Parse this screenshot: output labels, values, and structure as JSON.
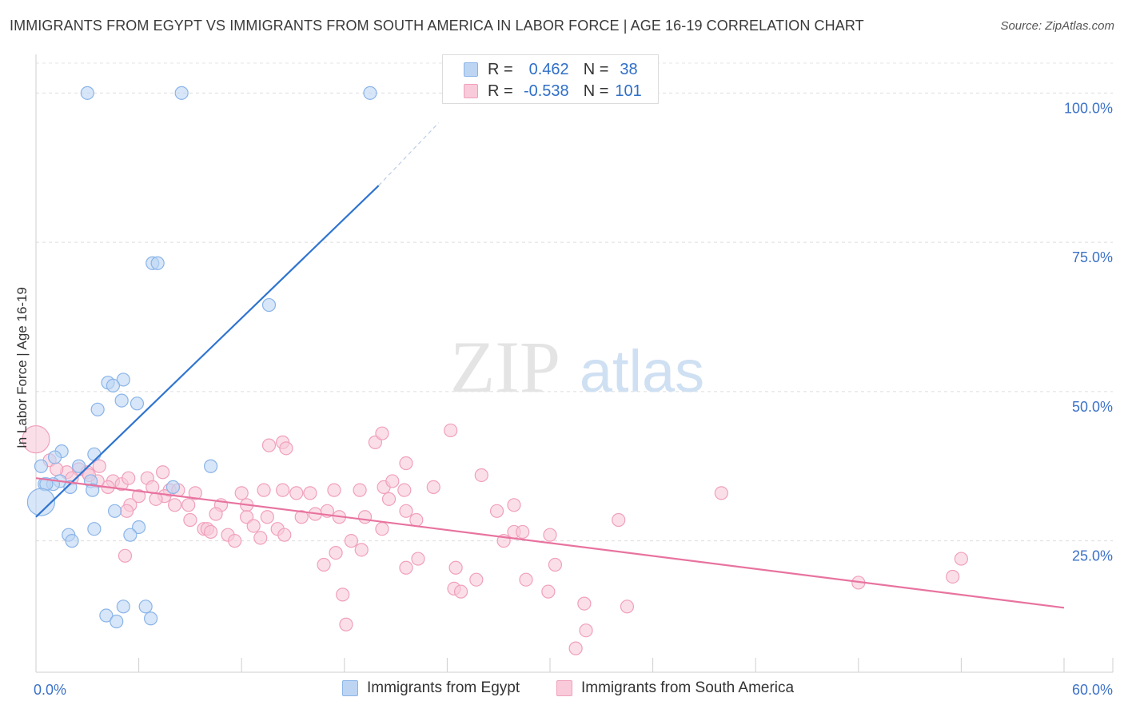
{
  "title": "IMMIGRANTS FROM EGYPT VS IMMIGRANTS FROM SOUTH AMERICA IN LABOR FORCE | AGE 16-19 CORRELATION CHART",
  "source": "Source: ZipAtlas.com",
  "watermark": {
    "zip": "ZIP",
    "atlas": "atlas"
  },
  "legend_stats": [
    {
      "r_label": "R =",
      "r_value": "0.462",
      "n_label": "N =",
      "n_value": "38",
      "color": "#8ab4e8",
      "fill": "#bdd5f3"
    },
    {
      "r_label": "R =",
      "r_value": "-0.538",
      "n_label": "N =",
      "n_value": "101",
      "color": "#f0a0bc",
      "fill": "#f9cad9"
    }
  ],
  "bottom_legend": [
    {
      "label": "Immigrants from Egypt",
      "color": "#8ab4e8",
      "fill": "#bdd5f3"
    },
    {
      "label": "Immigrants from South America",
      "color": "#f0a0bc",
      "fill": "#f9cad9"
    }
  ],
  "chart_data": {
    "type": "scatter",
    "title": "IMMIGRANTS FROM EGYPT VS IMMIGRANTS FROM SOUTH AMERICA IN LABOR FORCE | AGE 16-19 CORRELATION CHART",
    "xlabel": "",
    "ylabel": "In Labor Force | Age 16-19",
    "xlim": [
      0,
      60
    ],
    "ylim": [
      3,
      105
    ],
    "x_tick_labels": {
      "left": "0.0%",
      "right": "60.0%"
    },
    "y_ticks": [
      {
        "value": 25,
        "label": "25.0%"
      },
      {
        "value": 50,
        "label": "50.0%"
      },
      {
        "value": 75,
        "label": "75.0%"
      },
      {
        "value": 100,
        "label": "100.0%"
      }
    ],
    "grid": true,
    "series": [
      {
        "name": "Immigrants from Egypt",
        "color": "#8ab4e8",
        "fill": "#bdd5f3",
        "line_color": "#2f74d0",
        "trendline": {
          "x_start": 0.0,
          "y_start": 29.0,
          "x_end": 20.0,
          "y_end": 84.5,
          "dash_x_end": 23.5,
          "dash_y_end": 95.0
        },
        "points": [
          [
            3.0,
            100.0
          ],
          [
            8.5,
            100.0
          ],
          [
            19.5,
            100.0
          ],
          [
            6.8,
            71.5
          ],
          [
            7.1,
            71.5
          ],
          [
            13.6,
            64.5
          ],
          [
            5.1,
            52.0
          ],
          [
            4.2,
            51.5
          ],
          [
            4.5,
            51.0
          ],
          [
            5.0,
            48.5
          ],
          [
            5.9,
            48.0
          ],
          [
            3.6,
            47.0
          ],
          [
            1.5,
            40.0
          ],
          [
            3.4,
            39.5
          ],
          [
            1.1,
            39.0
          ],
          [
            0.3,
            37.5
          ],
          [
            2.5,
            37.5
          ],
          [
            10.2,
            37.5
          ],
          [
            1.4,
            35.0
          ],
          [
            3.2,
            35.0
          ],
          [
            0.5,
            34.5
          ],
          [
            2.0,
            34.0
          ],
          [
            1.0,
            34.5
          ],
          [
            0.6,
            34.5
          ],
          [
            8.0,
            34.0
          ],
          [
            3.3,
            33.5
          ],
          [
            0.3,
            31.5
          ],
          [
            4.6,
            30.0
          ],
          [
            3.4,
            27.0
          ],
          [
            6.0,
            27.3
          ],
          [
            1.9,
            26.0
          ],
          [
            2.1,
            25.0
          ],
          [
            5.5,
            26.0
          ],
          [
            4.1,
            12.5
          ],
          [
            5.1,
            14.0
          ],
          [
            6.4,
            14.0
          ],
          [
            4.7,
            11.5
          ],
          [
            6.7,
            12.0
          ]
        ]
      },
      {
        "name": "Immigrants from South America",
        "color": "#f0a0bc",
        "fill": "#f9cad9",
        "line_color": "#e8739f",
        "trendline": {
          "x_start": 0.0,
          "y_start": 35.5,
          "x_end": 60.0,
          "y_end": 13.8
        },
        "points": [
          [
            0.0,
            42.0
          ],
          [
            0.8,
            38.5
          ],
          [
            1.8,
            36.5
          ],
          [
            2.5,
            37.0
          ],
          [
            3.0,
            36.5
          ],
          [
            3.7,
            37.5
          ],
          [
            2.1,
            35.5
          ],
          [
            4.5,
            35.0
          ],
          [
            5.0,
            34.5
          ],
          [
            5.4,
            35.5
          ],
          [
            6.5,
            35.5
          ],
          [
            6.8,
            34.0
          ],
          [
            4.2,
            34.0
          ],
          [
            3.6,
            35.0
          ],
          [
            7.8,
            33.5
          ],
          [
            8.3,
            33.5
          ],
          [
            7.5,
            32.5
          ],
          [
            9.3,
            33.0
          ],
          [
            12.0,
            33.0
          ],
          [
            13.3,
            33.5
          ],
          [
            14.4,
            33.5
          ],
          [
            15.2,
            33.0
          ],
          [
            16.0,
            33.0
          ],
          [
            17.4,
            33.5
          ],
          [
            18.9,
            33.5
          ],
          [
            20.3,
            34.0
          ],
          [
            20.8,
            35.0
          ],
          [
            21.5,
            33.5
          ],
          [
            23.2,
            34.0
          ],
          [
            26.0,
            36.0
          ],
          [
            6.0,
            32.5
          ],
          [
            5.5,
            31.0
          ],
          [
            5.3,
            30.0
          ],
          [
            8.1,
            31.0
          ],
          [
            8.9,
            31.0
          ],
          [
            10.8,
            31.0
          ],
          [
            12.3,
            31.0
          ],
          [
            7.0,
            32.0
          ],
          [
            10.5,
            29.5
          ],
          [
            12.3,
            29.0
          ],
          [
            13.5,
            29.0
          ],
          [
            15.5,
            29.0
          ],
          [
            16.3,
            29.5
          ],
          [
            17.0,
            30.0
          ],
          [
            17.7,
            29.0
          ],
          [
            19.2,
            29.0
          ],
          [
            20.6,
            32.0
          ],
          [
            21.6,
            30.0
          ],
          [
            26.9,
            30.0
          ],
          [
            27.9,
            31.0
          ],
          [
            9.0,
            28.5
          ],
          [
            9.8,
            27.0
          ],
          [
            10.0,
            27.0
          ],
          [
            11.2,
            26.0
          ],
          [
            12.7,
            27.5
          ],
          [
            13.1,
            25.5
          ],
          [
            14.1,
            27.0
          ],
          [
            14.5,
            26.0
          ],
          [
            10.2,
            26.5
          ],
          [
            11.6,
            25.0
          ],
          [
            17.5,
            23.0
          ],
          [
            18.4,
            25.0
          ],
          [
            19.0,
            23.5
          ],
          [
            20.2,
            27.0
          ],
          [
            22.2,
            28.5
          ],
          [
            27.3,
            25.0
          ],
          [
            27.9,
            26.5
          ],
          [
            28.4,
            26.5
          ],
          [
            30.0,
            26.0
          ],
          [
            34.0,
            28.5
          ],
          [
            16.8,
            21.0
          ],
          [
            21.6,
            20.5
          ],
          [
            22.3,
            22.0
          ],
          [
            24.5,
            20.5
          ],
          [
            25.7,
            18.5
          ],
          [
            28.6,
            18.5
          ],
          [
            17.9,
            16.0
          ],
          [
            24.4,
            17.0
          ],
          [
            24.8,
            16.5
          ],
          [
            29.9,
            16.5
          ],
          [
            32.0,
            14.5
          ],
          [
            34.5,
            14.0
          ],
          [
            18.1,
            11.0
          ],
          [
            32.1,
            10.0
          ],
          [
            31.5,
            7.0
          ],
          [
            13.6,
            41.0
          ],
          [
            14.4,
            41.5
          ],
          [
            14.6,
            40.5
          ],
          [
            19.8,
            41.5
          ],
          [
            20.2,
            43.0
          ],
          [
            21.6,
            38.0
          ],
          [
            24.2,
            43.5
          ],
          [
            40.0,
            33.0
          ],
          [
            48.0,
            18.0
          ],
          [
            54.0,
            22.0
          ],
          [
            53.5,
            19.0
          ],
          [
            5.2,
            22.5
          ],
          [
            30.3,
            21.0
          ],
          [
            3.1,
            36.0
          ],
          [
            1.2,
            37.0
          ],
          [
            7.4,
            36.5
          ]
        ]
      }
    ]
  }
}
